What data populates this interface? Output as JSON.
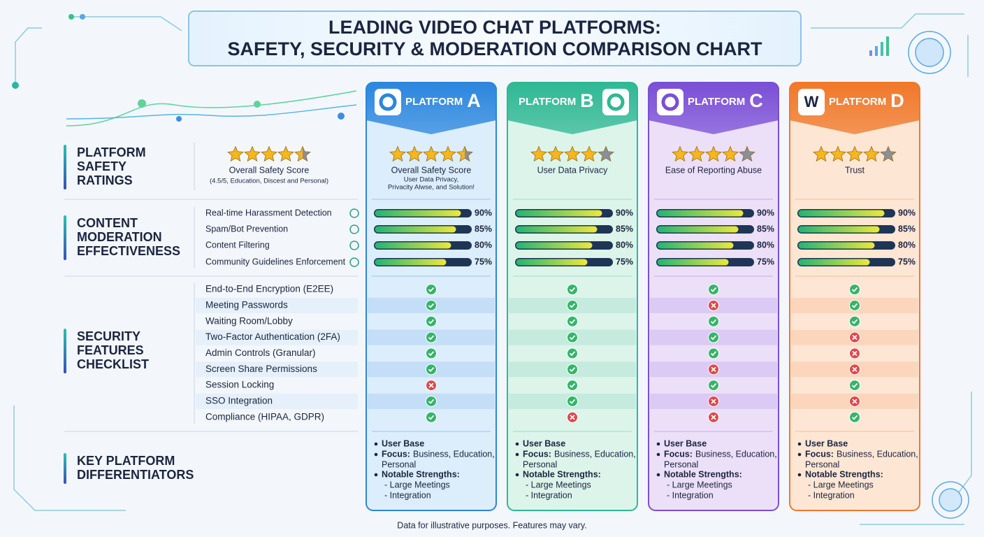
{
  "header": {
    "title_lines": [
      "LEADING VIDEO CHAT PLATFORMS:",
      "SAFETY, SECURITY & MODERATION COMPARISON CHART"
    ]
  },
  "sections": {
    "ratings": [
      "PLATFORM",
      "SAFETY",
      "RATINGS"
    ],
    "moderation": [
      "CONTENT",
      "MODERATION",
      "EFFECTIVENESS"
    ],
    "security": [
      "SECURITY",
      "FEATURES",
      "CHECKLIST"
    ],
    "differentiators": [
      "KEY PLATFORM",
      "DIFFERENTIATORS"
    ]
  },
  "overall_rating": {
    "stars": 4.5,
    "label": "Overall Safety Score",
    "note": "(4.5/5, Education, Discest and Personal)"
  },
  "moderation_criteria": [
    "Real-time Harassment Detection",
    "Spam/Bot Prevention",
    "Content Filtering",
    "Community Guidelines Enforcement"
  ],
  "security_features": [
    "End-to-End Encryption (E2EE)",
    "Meeting Passwords",
    "Waiting Room/Lobby",
    "Two-Factor Authentication (2FA)",
    "Admin Controls (Granular)",
    "Screen Share Permissions",
    "Session Locking",
    "SSO Integration",
    "Compliance (HIPAA, GDPR)"
  ],
  "platforms": [
    {
      "label": "PLATFORM",
      "letter": "A",
      "color": "#2b86de",
      "tint": "#dcedfb",
      "stars": 4.5,
      "rating_label": "Overall Safety Score",
      "rating_note": [
        "User Data Privacy,",
        "Privacity Alwse, and Solution!"
      ],
      "moderation": [
        90,
        85,
        80,
        75
      ],
      "moderation_labels": [
        "90%",
        "85%",
        "80%",
        "75%"
      ],
      "features": [
        true,
        true,
        true,
        true,
        true,
        true,
        false,
        true,
        true
      ],
      "differentiators": {
        "user_base": "User Base",
        "focus_label": "Focus:",
        "focus": [
          "Business, Education,",
          "Personal"
        ],
        "strengths_label": "Notable Strengths:",
        "strengths": [
          "- Large Meetings",
          "- Integration"
        ]
      }
    },
    {
      "label": "PLATFORM",
      "letter": "B",
      "color": "#2fb894",
      "tint": "#dcf4ea",
      "stars": 4,
      "rating_label": "User Data Privacy",
      "moderation": [
        90,
        85,
        80,
        75
      ],
      "moderation_labels": [
        "90%",
        "85%",
        "80%",
        "75%"
      ],
      "features": [
        true,
        true,
        true,
        true,
        true,
        true,
        true,
        true,
        false
      ],
      "differentiators": {
        "user_base": "User Base",
        "focus_label": "Focus:",
        "focus": [
          "Business, Education,",
          "Personal"
        ],
        "strengths_label": "Notable Strengths:",
        "strengths": [
          "- Large Meetings",
          "- Integration"
        ]
      }
    },
    {
      "label": "PLATFORM",
      "letter": "C",
      "color": "#7a4fd6",
      "tint": "#ecdff8",
      "stars": 4,
      "rating_label": "Ease of Reporting Abuse",
      "moderation": [
        90,
        85,
        80,
        75
      ],
      "moderation_labels": [
        "90%",
        "85%",
        "80%",
        "75%"
      ],
      "features": [
        true,
        false,
        true,
        true,
        true,
        false,
        true,
        false,
        false
      ],
      "differentiators": {
        "user_base": "User Base",
        "focus_label": "Focus:",
        "focus": [
          "Business, Education,",
          "Personal"
        ],
        "strengths_label": "Notable Strengths:",
        "strengths": [
          "- Large Meetings",
          "- Integration"
        ]
      }
    },
    {
      "label": "PLATFORM",
      "letter": "D",
      "icon_text": "W",
      "color": "#f0782a",
      "tint": "#fde6d4",
      "stars": 4,
      "rating_label": "Trust",
      "moderation": [
        90,
        85,
        80,
        75
      ],
      "moderation_labels": [
        "90%",
        "85%",
        "80%",
        "75%"
      ],
      "features": [
        true,
        true,
        true,
        false,
        false,
        false,
        true,
        false,
        true
      ],
      "differentiators": {
        "user_base": "User Base",
        "focus_label": "Focus:",
        "focus": [
          "Business, Education,",
          "Personal"
        ],
        "strengths_label": "Notable Strengths:",
        "strengths": [
          "- Large Meetings",
          "- Integration"
        ]
      }
    }
  ],
  "footer": "Data for illustrative purposes. Features may vary."
}
